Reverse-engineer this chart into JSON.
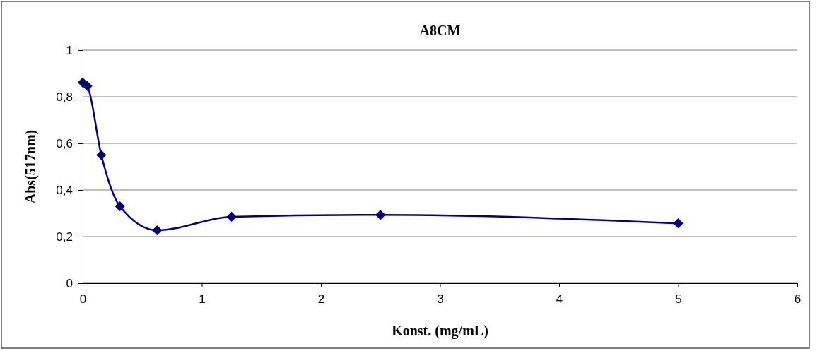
{
  "chart_data": {
    "type": "line",
    "title": "A8CM",
    "xlabel": "Konst. (mg/mL)",
    "ylabel": "Abs(517nm)",
    "x": [
      0,
      0.039,
      0.156,
      0.3125,
      0.625,
      1.25,
      2.5,
      5
    ],
    "series": [
      {
        "color": "#000080",
        "values": [
          0.861,
          0.846,
          0.55,
          0.33,
          0.227,
          0.285,
          0.293,
          0.257
        ]
      }
    ],
    "xlim": [
      0,
      6
    ],
    "xticks": [
      0,
      1,
      2,
      3,
      4,
      5,
      6
    ],
    "ylim": [
      0,
      1
    ],
    "yticks": [
      0,
      {
        "value": 0.2,
        "label": "0,2"
      },
      {
        "value": 0.4,
        "label": "0,4"
      },
      {
        "value": 0.6,
        "label": "0,6"
      },
      {
        "value": 0.8,
        "label": "0,8"
      },
      1
    ],
    "grid": "y",
    "marker": "diamond",
    "line_style": "solid"
  }
}
